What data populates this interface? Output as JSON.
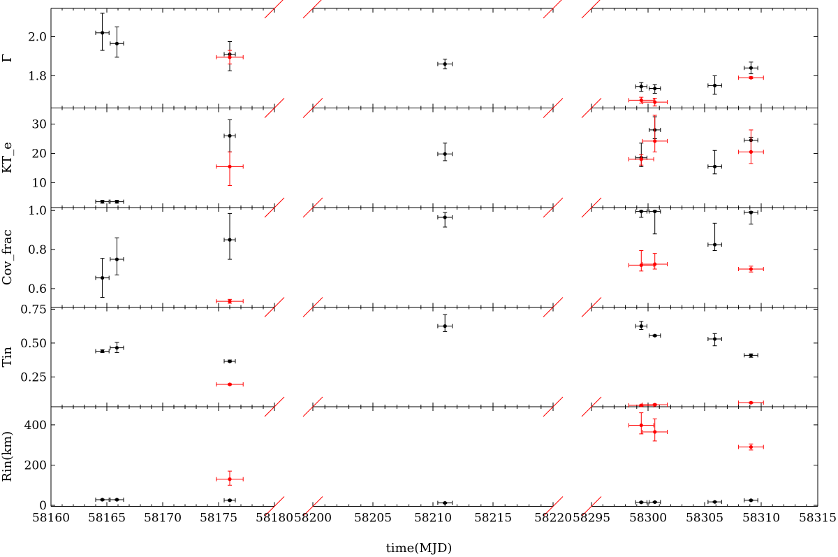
{
  "chart_data": {
    "type": "scatter",
    "title": "",
    "xlabel": "time(MJD)",
    "broken_x_axis": true,
    "x_segments": [
      {
        "range": [
          58160,
          58180
        ],
        "ticks": [
          58160,
          58165,
          58170,
          58175,
          58180
        ]
      },
      {
        "range": [
          58200,
          58220
        ],
        "ticks": [
          58200,
          58205,
          58210,
          58215,
          58220
        ]
      },
      {
        "range": [
          58295,
          58315
        ],
        "ticks": [
          58295,
          58300,
          58305,
          58310,
          58315
        ]
      }
    ],
    "colors": {
      "series_a": "#000000",
      "series_b": "#ff0000",
      "axis": "#000000",
      "break_mark": "#ff0000"
    },
    "panels": [
      {
        "ylabel": "Γ",
        "ylim": [
          1.635,
          2.145
        ],
        "yticks": [
          1.8,
          2.0
        ],
        "ytick_labels": [
          "1.8",
          "2.0"
        ],
        "series": [
          {
            "color": "#000000",
            "points": [
              {
                "x": 58164.6,
                "y": 2.02,
                "xerr": 0.6,
                "ylo": 1.93,
                "yhi": 2.12
              },
              {
                "x": 58165.9,
                "y": 1.965,
                "xerr": 0.6,
                "ylo": 1.895,
                "yhi": 2.05
              },
              {
                "x": 58176.0,
                "y": 1.91,
                "xerr": 0.5,
                "ylo": 1.825,
                "yhi": 1.975
              },
              {
                "x": 58211.0,
                "y": 1.86,
                "xerr": 0.6,
                "ylo": 1.835,
                "yhi": 1.885
              },
              {
                "x": 58299.4,
                "y": 1.745,
                "xerr": 0.5,
                "ylo": 1.72,
                "yhi": 1.765
              },
              {
                "x": 58300.6,
                "y": 1.735,
                "xerr": 0.5,
                "ylo": 1.71,
                "yhi": 1.755
              },
              {
                "x": 58305.9,
                "y": 1.75,
                "xerr": 0.6,
                "ylo": 1.705,
                "yhi": 1.8
              },
              {
                "x": 58309.1,
                "y": 1.84,
                "xerr": 0.6,
                "ylo": 1.81,
                "yhi": 1.87
              }
            ]
          },
          {
            "color": "#ff0000",
            "points": [
              {
                "x": 58176.0,
                "y": 1.895,
                "xerr": 1.2,
                "ylo": 1.86,
                "yhi": 1.93
              },
              {
                "x": 58299.4,
                "y": 1.675,
                "xerr": 1.1,
                "ylo": 1.66,
                "yhi": 1.69
              },
              {
                "x": 58300.6,
                "y": 1.665,
                "xerr": 1.1,
                "ylo": 1.645,
                "yhi": 1.685
              },
              {
                "x": 58309.1,
                "y": 1.79,
                "xerr": 1.1,
                "ylo": 1.785,
                "yhi": 1.795
              }
            ]
          }
        ]
      },
      {
        "ylabel": "KT_e",
        "ylim": [
          1.5,
          35.5
        ],
        "yticks": [
          10,
          20,
          30
        ],
        "ytick_labels": [
          "10",
          "20",
          "30"
        ],
        "series": [
          {
            "color": "#000000",
            "points": [
              {
                "x": 58164.6,
                "y": 3.5,
                "xerr": 0.6,
                "ylo": 3.0,
                "yhi": 4.0
              },
              {
                "x": 58165.9,
                "y": 3.5,
                "xerr": 0.6,
                "ylo": 3.0,
                "yhi": 4.0
              },
              {
                "x": 58176.0,
                "y": 26.0,
                "xerr": 0.5,
                "ylo": 20.5,
                "yhi": 31.5
              },
              {
                "x": 58211.0,
                "y": 19.8,
                "xerr": 0.6,
                "ylo": 17.5,
                "yhi": 23.5
              },
              {
                "x": 58299.4,
                "y": 18.5,
                "xerr": 0.5,
                "ylo": 15.5,
                "yhi": 23.5
              },
              {
                "x": 58300.6,
                "y": 28.0,
                "xerr": 0.5,
                "ylo": 25.0,
                "yhi": 32.5
              },
              {
                "x": 58305.9,
                "y": 15.5,
                "xerr": 0.6,
                "ylo": 13.0,
                "yhi": 21.0
              },
              {
                "x": 58309.1,
                "y": 24.5,
                "xerr": 0.6,
                "ylo": 20.5,
                "yhi": 25.5
              }
            ]
          },
          {
            "color": "#ff0000",
            "points": [
              {
                "x": 58176.0,
                "y": 15.5,
                "xerr": 1.2,
                "ylo": 9.0,
                "yhi": 20.5
              },
              {
                "x": 58299.4,
                "y": 18.0,
                "xerr": 1.1,
                "ylo": 16.0,
                "yhi": 19.5
              },
              {
                "x": 58300.6,
                "y": 24.2,
                "xerr": 1.1,
                "ylo": 20.5,
                "yhi": 33.0
              },
              {
                "x": 58309.1,
                "y": 20.5,
                "xerr": 1.1,
                "ylo": 16.5,
                "yhi": 28.0
              }
            ]
          }
        ]
      },
      {
        "ylabel": "Cov_frac",
        "ylim": [
          0.505,
          1.015
        ],
        "yticks": [
          0.6,
          0.8,
          1.0
        ],
        "ytick_labels": [
          "0.6",
          "0.8",
          "1.0"
        ],
        "series": [
          {
            "color": "#000000",
            "points": [
              {
                "x": 58164.6,
                "y": 0.655,
                "xerr": 0.6,
                "ylo": 0.555,
                "yhi": 0.755
              },
              {
                "x": 58165.9,
                "y": 0.75,
                "xerr": 0.6,
                "ylo": 0.67,
                "yhi": 0.86
              },
              {
                "x": 58176.0,
                "y": 0.85,
                "xerr": 0.5,
                "ylo": 0.75,
                "yhi": 0.985
              },
              {
                "x": 58211.0,
                "y": 0.965,
                "xerr": 0.6,
                "ylo": 0.915,
                "yhi": 0.99
              },
              {
                "x": 58299.4,
                "y": 0.995,
                "xerr": 0.5,
                "ylo": 0.965,
                "yhi": 1.0
              },
              {
                "x": 58300.6,
                "y": 0.995,
                "xerr": 0.5,
                "ylo": 0.88,
                "yhi": 1.0
              },
              {
                "x": 58305.9,
                "y": 0.825,
                "xerr": 0.6,
                "ylo": 0.795,
                "yhi": 0.935
              },
              {
                "x": 58309.1,
                "y": 0.99,
                "xerr": 0.6,
                "ylo": 0.93,
                "yhi": 0.995
              }
            ]
          },
          {
            "color": "#ff0000",
            "points": [
              {
                "x": 58176.0,
                "y": 0.535,
                "xerr": 1.2,
                "ylo": 0.525,
                "yhi": 0.545
              },
              {
                "x": 58299.4,
                "y": 0.72,
                "xerr": 1.1,
                "ylo": 0.69,
                "yhi": 0.795
              },
              {
                "x": 58300.6,
                "y": 0.725,
                "xerr": 1.1,
                "ylo": 0.7,
                "yhi": 0.78
              },
              {
                "x": 58309.1,
                "y": 0.7,
                "xerr": 1.1,
                "ylo": 0.685,
                "yhi": 0.715
              }
            ]
          }
        ]
      },
      {
        "ylabel": "Tin",
        "ylim": [
          0.03,
          0.765
        ],
        "yticks": [
          0.25,
          0.5,
          0.75
        ],
        "ytick_labels": [
          "0.25",
          "0.50",
          "0.75"
        ],
        "series": [
          {
            "color": "#000000",
            "points": [
              {
                "x": 58164.6,
                "y": 0.44,
                "xerr": 0.6,
                "ylo": 0.43,
                "yhi": 0.45
              },
              {
                "x": 58165.9,
                "y": 0.465,
                "xerr": 0.6,
                "ylo": 0.43,
                "yhi": 0.505
              },
              {
                "x": 58176.0,
                "y": 0.365,
                "xerr": 0.5,
                "ylo": 0.36,
                "yhi": 0.375
              },
              {
                "x": 58211.0,
                "y": 0.625,
                "xerr": 0.6,
                "ylo": 0.585,
                "yhi": 0.71
              },
              {
                "x": 58299.4,
                "y": 0.625,
                "xerr": 0.5,
                "ylo": 0.6,
                "yhi": 0.66
              },
              {
                "x": 58300.6,
                "y": 0.555,
                "xerr": 0.5,
                "ylo": 0.55,
                "yhi": 0.56
              },
              {
                "x": 58305.9,
                "y": 0.53,
                "xerr": 0.6,
                "ylo": 0.48,
                "yhi": 0.57
              },
              {
                "x": 58309.1,
                "y": 0.41,
                "xerr": 0.6,
                "ylo": 0.395,
                "yhi": 0.42
              }
            ]
          },
          {
            "color": "#ff0000",
            "points": [
              {
                "x": 58176.0,
                "y": 0.195,
                "xerr": 1.2,
                "ylo": 0.19,
                "yhi": 0.2
              },
              {
                "x": 58299.4,
                "y": 0.04,
                "xerr": 1.1,
                "ylo": 0.035,
                "yhi": 0.045
              },
              {
                "x": 58300.6,
                "y": 0.045,
                "xerr": 1.1,
                "ylo": 0.04,
                "yhi": 0.05
              },
              {
                "x": 58309.1,
                "y": 0.06,
                "xerr": 1.1,
                "ylo": 0.055,
                "yhi": 0.065
              }
            ]
          }
        ]
      },
      {
        "ylabel": "Rin(km)",
        "ylim": [
          -5,
          490
        ],
        "yticks": [
          0,
          200,
          400
        ],
        "ytick_labels": [
          "0",
          "200",
          "400"
        ],
        "series": [
          {
            "color": "#000000",
            "points": [
              {
                "x": 58164.6,
                "y": 28,
                "xerr": 0.6,
                "ylo": 25,
                "yhi": 31
              },
              {
                "x": 58165.9,
                "y": 28,
                "xerr": 0.6,
                "ylo": 25,
                "yhi": 31
              },
              {
                "x": 58176.0,
                "y": 25,
                "xerr": 0.5,
                "ylo": 22,
                "yhi": 28
              },
              {
                "x": 58211.0,
                "y": 12,
                "xerr": 0.6,
                "ylo": 9,
                "yhi": 15
              },
              {
                "x": 58299.4,
                "y": 15,
                "xerr": 0.5,
                "ylo": 12,
                "yhi": 18
              },
              {
                "x": 58300.6,
                "y": 16,
                "xerr": 0.5,
                "ylo": 13,
                "yhi": 19
              },
              {
                "x": 58305.9,
                "y": 17,
                "xerr": 0.6,
                "ylo": 14,
                "yhi": 20
              },
              {
                "x": 58309.1,
                "y": 25,
                "xerr": 0.6,
                "ylo": 22,
                "yhi": 28
              }
            ]
          },
          {
            "color": "#ff0000",
            "points": [
              {
                "x": 58176.0,
                "y": 130,
                "xerr": 1.2,
                "ylo": 100,
                "yhi": 170
              },
              {
                "x": 58299.4,
                "y": 398,
                "xerr": 1.1,
                "ylo": 355,
                "yhi": 460
              },
              {
                "x": 58300.6,
                "y": 365,
                "xerr": 1.1,
                "ylo": 320,
                "yhi": 430
              },
              {
                "x": 58309.1,
                "y": 290,
                "xerr": 1.1,
                "ylo": 275,
                "yhi": 305
              }
            ]
          }
        ]
      }
    ]
  }
}
